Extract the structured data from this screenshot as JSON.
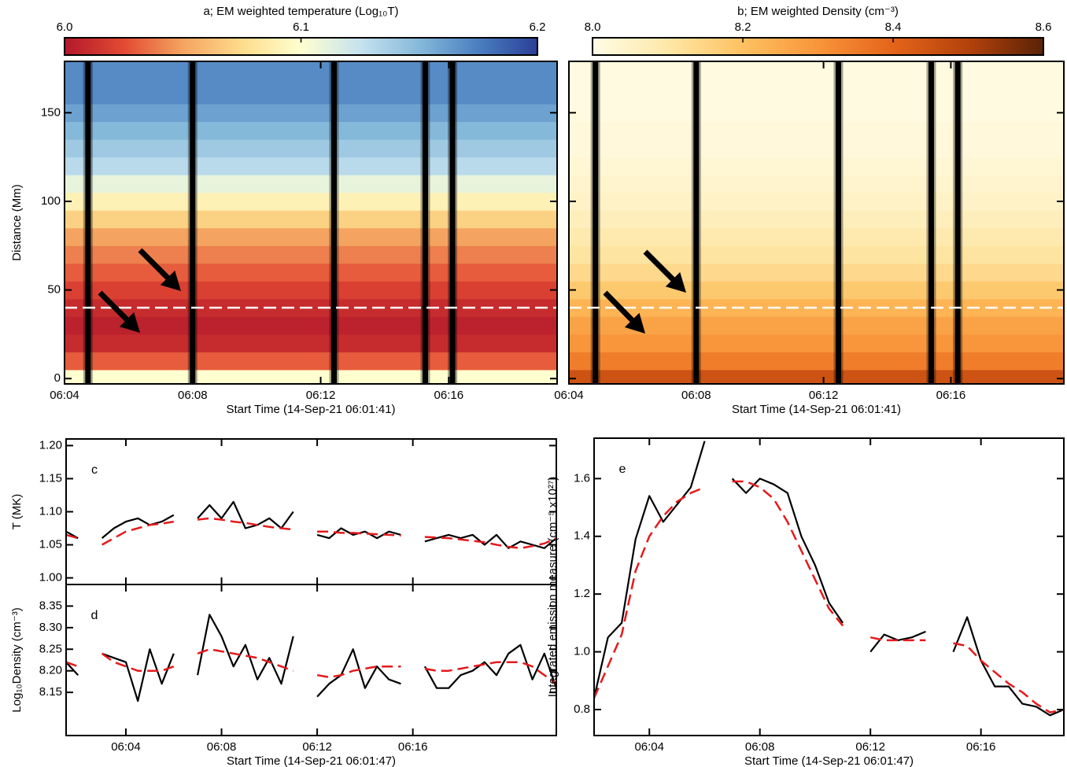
{
  "chart_data": [
    {
      "type": "heatmap",
      "title": "a; EM weighted temperature (Log₁₀T)",
      "xlabel": "Start Time (14-Sep-21 06:01:41)",
      "ylabel": "Distance (Mm)",
      "xlim": [
        "06:04:00",
        "06:19:23"
      ],
      "xticks": [
        "06:04",
        "06:08",
        "06:12",
        "06:16"
      ],
      "ylim": [
        -3,
        179
      ],
      "yticks": [
        0,
        50,
        100,
        150
      ],
      "y_bins": [
        -3,
        5,
        15,
        25,
        35,
        45,
        55,
        65,
        75,
        85,
        95,
        105,
        115,
        125,
        135,
        145,
        155,
        165,
        179
      ],
      "values": [
        6.1,
        6.03,
        6.01,
        6.005,
        6.01,
        6.02,
        6.03,
        6.04,
        6.05,
        6.07,
        6.09,
        6.11,
        6.13,
        6.14,
        6.15,
        6.16,
        6.17,
        6.17
      ],
      "clim": [
        6.0,
        6.2
      ],
      "cticks": [
        {
          "value": 6,
          "label": "6.0"
        },
        6.1,
        6.2
      ],
      "colors": [
        "#b2182b",
        "#e34a33",
        "#f4a460",
        "#fddc8c",
        "#ffffd0",
        "#c6e2ee",
        "#85b9da",
        "#4a7fc0",
        "#2b3f96"
      ],
      "gaps": [
        "06:04:44",
        "06:08:00",
        "06:12:25",
        "06:15:16",
        "06:16:07"
      ],
      "hline": 40
    },
    {
      "type": "heatmap",
      "title": "b; EM weighted Density (cm⁻³)",
      "xlabel": "Start Time (14-Sep-21 06:01:41)",
      "xlim": [
        "06:04:00",
        "06:19:33"
      ],
      "xticks": [
        "06:04",
        "06:08",
        "06:12",
        "06:16"
      ],
      "ylim": [
        -3,
        179
      ],
      "yticks": [
        0,
        50,
        100,
        150
      ],
      "ytick_labels": false,
      "y_bins": [
        -3,
        5,
        15,
        25,
        35,
        45,
        55,
        65,
        75,
        85,
        95,
        105,
        115,
        125,
        135,
        145,
        155,
        165,
        179
      ],
      "values": [
        8.45,
        8.35,
        8.3,
        8.27,
        8.23,
        8.18,
        8.14,
        8.11,
        8.09,
        8.07,
        8.05,
        8.04,
        8.03,
        8.02,
        8.02,
        8.01,
        8.01,
        8.01
      ],
      "clim": [
        8.0,
        8.6
      ],
      "cticks": [
        {
          "value": 8,
          "label": "8.0"
        },
        8.2,
        8.4,
        8.6
      ],
      "colors": [
        "#fffce6",
        "#fee8a8",
        "#fdc161",
        "#f9953a",
        "#e4641a",
        "#b3420c",
        "#5a2206"
      ],
      "gaps": [
        "06:04:50",
        "06:08:00",
        "06:12:28",
        "06:15:23",
        "06:16:13"
      ],
      "hline": 40
    },
    {
      "type": "line",
      "annotation": "c",
      "ylabel": "T (MK)",
      "xlim": [
        "06:01:30",
        "06:22:00"
      ],
      "xticks": [
        "06:04",
        "06:08",
        "06:12",
        "06:16"
      ],
      "xtick_labels": false,
      "ylim": [
        0.99,
        1.21
      ],
      "yticks": [
        {
          "value": 1,
          "label": "1.00"
        },
        1.05,
        {
          "value": 1.1,
          "label": "1.10"
        },
        1.15,
        {
          "value": 1.2,
          "label": "1.20"
        }
      ],
      "x": [
        "06:01:30",
        "06:02:00",
        "06:02:30",
        "06:03:00",
        "06:03:30",
        "06:04:00",
        "06:04:30",
        "06:05:00",
        "06:05:30",
        "06:06:00",
        "06:06:30",
        "06:07:00",
        "06:07:30",
        "06:08:00",
        "06:08:30",
        "06:09:00",
        "06:09:30",
        "06:10:00",
        "06:10:30",
        "06:11:00",
        "06:11:30",
        "06:12:00",
        "06:12:30",
        "06:13:00",
        "06:13:30",
        "06:14:00",
        "06:14:30",
        "06:15:00",
        "06:15:30",
        "06:16:00",
        "06:16:30",
        "06:17:00",
        "06:17:30",
        "06:18:00",
        "06:18:30",
        "06:19:00",
        "06:19:30",
        "06:20:00",
        "06:20:30",
        "06:21:00",
        "06:21:30",
        "06:22:00"
      ],
      "series": [
        {
          "color": "#000000",
          "values": [
            1.07,
            1.06,
            null,
            1.06,
            1.075,
            1.085,
            1.09,
            1.08,
            1.085,
            1.095,
            null,
            1.09,
            1.11,
            1.09,
            1.115,
            1.075,
            1.08,
            1.09,
            1.075,
            1.1,
            null,
            1.065,
            1.06,
            1.075,
            1.065,
            1.07,
            1.06,
            1.07,
            1.065,
            null,
            1.055,
            1.06,
            1.065,
            1.06,
            1.065,
            1.05,
            1.065,
            1.045,
            1.055,
            1.05,
            1.045,
            1.06
          ]
        },
        {
          "color": "#e41a1c",
          "dashed": true,
          "values": [
            1.065,
            1.06,
            null,
            1.05,
            1.06,
            1.07,
            1.075,
            1.08,
            1.082,
            1.085,
            null,
            1.088,
            1.09,
            1.088,
            1.085,
            1.083,
            1.08,
            1.077,
            1.075,
            1.073,
            null,
            1.07,
            1.07,
            1.068,
            1.068,
            1.067,
            1.066,
            1.065,
            1.064,
            null,
            1.062,
            1.061,
            1.06,
            1.058,
            1.056,
            1.054,
            1.05,
            1.047,
            1.045,
            1.048,
            1.052,
            1.06
          ]
        }
      ]
    },
    {
      "type": "line",
      "annotation": "d",
      "ylabel": "Log₁₀Density (cm⁻³)",
      "xlabel": "Start Time (14-Sep-21 06:01:47)",
      "xlim": [
        "06:01:30",
        "06:22:00"
      ],
      "xticks": [
        "06:04",
        "06:08",
        "06:12",
        "06:16"
      ],
      "ylim": [
        8.05,
        8.4
      ],
      "yticks": [
        8.15,
        {
          "value": 8.2,
          "label": "8.20"
        },
        8.25,
        {
          "value": 8.3,
          "label": "8.30"
        },
        8.35
      ],
      "x": [
        "06:01:30",
        "06:02:00",
        "06:02:30",
        "06:03:00",
        "06:03:30",
        "06:04:00",
        "06:04:30",
        "06:05:00",
        "06:05:30",
        "06:06:00",
        "06:06:30",
        "06:07:00",
        "06:07:30",
        "06:08:00",
        "06:08:30",
        "06:09:00",
        "06:09:30",
        "06:10:00",
        "06:10:30",
        "06:11:00",
        "06:11:30",
        "06:12:00",
        "06:12:30",
        "06:13:00",
        "06:13:30",
        "06:14:00",
        "06:14:30",
        "06:15:00",
        "06:15:30",
        "06:16:00",
        "06:16:30",
        "06:17:00",
        "06:17:30",
        "06:18:00",
        "06:18:30",
        "06:19:00",
        "06:19:30",
        "06:20:00",
        "06:20:30",
        "06:21:00",
        "06:21:30",
        "06:22:00"
      ],
      "series": [
        {
          "color": "#000000",
          "values": [
            8.22,
            8.19,
            null,
            8.24,
            8.23,
            8.22,
            8.13,
            8.25,
            8.17,
            8.24,
            null,
            8.19,
            8.33,
            8.28,
            8.21,
            8.26,
            8.18,
            8.23,
            8.17,
            8.28,
            null,
            8.14,
            8.17,
            8.19,
            8.25,
            8.16,
            8.21,
            8.18,
            8.17,
            null,
            8.21,
            8.16,
            8.16,
            8.19,
            8.2,
            8.22,
            8.19,
            8.24,
            8.26,
            8.18,
            8.24,
            8.16
          ]
        },
        {
          "color": "#e41a1c",
          "dashed": true,
          "values": [
            8.22,
            8.21,
            null,
            8.24,
            8.22,
            8.21,
            8.2,
            8.2,
            8.2,
            8.21,
            null,
            8.24,
            8.25,
            8.245,
            8.24,
            8.235,
            8.23,
            8.22,
            8.21,
            8.2,
            null,
            8.19,
            8.185,
            8.19,
            8.2,
            8.205,
            8.21,
            8.21,
            8.21,
            null,
            8.205,
            8.2,
            8.2,
            8.205,
            8.21,
            8.215,
            8.22,
            8.22,
            8.22,
            8.21,
            8.19,
            8.17
          ]
        }
      ]
    },
    {
      "type": "line",
      "annotation": "e",
      "ylabel": "Integrated emission measure (cm⁻⁵ x10²⁷)",
      "xlabel": "Start Time (14-Sep-21 06:01:47)",
      "xlim": [
        "06:02:00",
        "06:19:00"
      ],
      "xticks": [
        "06:04",
        "06:08",
        "06:12",
        "06:16"
      ],
      "ylim": [
        0.71,
        1.74
      ],
      "yticks": [
        0.8,
        {
          "value": 1,
          "label": "1.0"
        },
        1.2,
        1.4,
        1.6
      ],
      "x": [
        "06:02:00",
        "06:02:30",
        "06:03:00",
        "06:03:30",
        "06:04:00",
        "06:04:30",
        "06:05:00",
        "06:05:30",
        "06:06:00",
        "06:06:30",
        "06:07:00",
        "06:07:30",
        "06:08:00",
        "06:08:30",
        "06:09:00",
        "06:09:30",
        "06:10:00",
        "06:10:30",
        "06:11:00",
        "06:11:30",
        "06:12:00",
        "06:12:30",
        "06:13:00",
        "06:13:30",
        "06:14:00",
        "06:14:30",
        "06:15:00",
        "06:15:30",
        "06:16:00",
        "06:16:30",
        "06:17:00",
        "06:17:30",
        "06:18:00",
        "06:18:30",
        "06:19:00"
      ],
      "series": [
        {
          "color": "#000000",
          "values": [
            0.84,
            1.05,
            1.1,
            1.39,
            1.54,
            1.45,
            1.51,
            1.57,
            1.73,
            null,
            1.6,
            1.55,
            1.6,
            1.58,
            1.55,
            1.4,
            1.3,
            1.17,
            1.1,
            null,
            1.0,
            1.06,
            1.04,
            1.05,
            1.07,
            null,
            1.0,
            1.12,
            0.97,
            0.88,
            0.88,
            0.82,
            0.81,
            0.78,
            0.8
          ]
        },
        {
          "color": "#e41a1c",
          "dashed": true,
          "values": [
            0.84,
            0.95,
            1.06,
            1.28,
            1.4,
            1.47,
            1.52,
            1.55,
            1.57,
            null,
            1.59,
            1.59,
            1.57,
            1.53,
            1.45,
            1.35,
            1.25,
            1.15,
            1.09,
            null,
            1.05,
            1.04,
            1.04,
            1.04,
            1.04,
            null,
            1.03,
            1.02,
            0.97,
            0.93,
            0.89,
            0.86,
            0.82,
            0.79,
            0.8
          ]
        }
      ]
    }
  ]
}
